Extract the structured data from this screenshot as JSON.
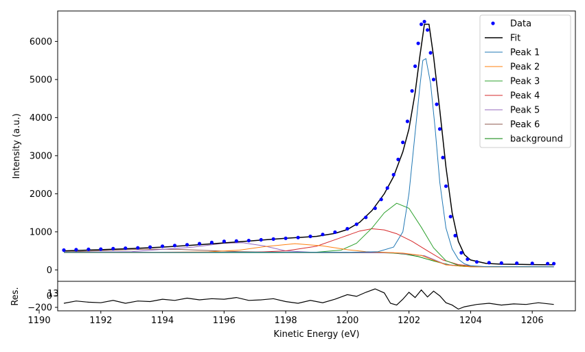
{
  "chart_data": {
    "type": "line",
    "xlabel": "Kinetic Energy (eV)",
    "ylabel": "Intensity (a.u.)",
    "res_label": "Res.",
    "res_overlap_text": "13",
    "xlim": [
      1190.6,
      1207.4
    ],
    "ylim": [
      -300,
      6800
    ],
    "res_ylim": [
      -260,
      250
    ],
    "x_ticks": [
      1190,
      1192,
      1194,
      1196,
      1198,
      1200,
      1202,
      1204,
      1206
    ],
    "y_ticks": [
      0,
      1000,
      2000,
      3000,
      4000,
      5000,
      6000
    ],
    "res_y_ticks": [
      0,
      -200
    ],
    "legend": {
      "position": "top-right",
      "entries": [
        {
          "label": "Data",
          "color": "#0000ff",
          "kind": "marker"
        },
        {
          "label": "Fit",
          "color": "#000000",
          "kind": "line"
        },
        {
          "label": "Peak 1",
          "color": "#1f77b4",
          "kind": "line"
        },
        {
          "label": "Peak 2",
          "color": "#ff7f0e",
          "kind": "line"
        },
        {
          "label": "Peak 3",
          "color": "#2ca02c",
          "kind": "line"
        },
        {
          "label": "Peak 4",
          "color": "#d62728",
          "kind": "line"
        },
        {
          "label": "Peak 5",
          "color": "#9467bd",
          "kind": "line"
        },
        {
          "label": "Peak 6",
          "color": "#8c564b",
          "kind": "line"
        },
        {
          "label": "background",
          "color": "#008000",
          "kind": "line"
        }
      ]
    },
    "data_series": {
      "name": "Data",
      "color": "#0000ff",
      "x": [
        1190.8,
        1191.2,
        1191.6,
        1192.0,
        1192.4,
        1192.8,
        1193.2,
        1193.6,
        1194.0,
        1194.4,
        1194.8,
        1195.2,
        1195.6,
        1196.0,
        1196.4,
        1196.8,
        1197.2,
        1197.6,
        1198.0,
        1198.4,
        1198.8,
        1199.2,
        1199.6,
        1200.0,
        1200.3,
        1200.6,
        1200.9,
        1201.1,
        1201.3,
        1201.5,
        1201.65,
        1201.8,
        1201.95,
        1202.1,
        1202.2,
        1202.3,
        1202.4,
        1202.5,
        1202.6,
        1202.7,
        1202.8,
        1202.9,
        1203.0,
        1203.1,
        1203.2,
        1203.35,
        1203.5,
        1203.7,
        1203.9,
        1204.2,
        1204.6,
        1205.0,
        1205.5,
        1206.0,
        1206.5,
        1206.7
      ],
      "y": [
        520,
        530,
        540,
        545,
        560,
        570,
        580,
        600,
        620,
        640,
        660,
        690,
        720,
        750,
        760,
        770,
        790,
        810,
        830,
        850,
        880,
        930,
        990,
        1080,
        1200,
        1380,
        1620,
        1850,
        2150,
        2500,
        2900,
        3350,
        3900,
        4700,
        5350,
        5950,
        6450,
        6520,
        6300,
        5700,
        5000,
        4350,
        3700,
        2950,
        2200,
        1400,
        900,
        450,
        280,
        210,
        190,
        180,
        175,
        170,
        165,
        165
      ]
    },
    "fit_series": {
      "name": "Fit",
      "color": "#000000",
      "x": [
        1190.8,
        1192.0,
        1193.0,
        1194.0,
        1195.0,
        1196.0,
        1197.0,
        1198.0,
        1199.0,
        1199.6,
        1200.0,
        1200.4,
        1200.8,
        1201.2,
        1201.5,
        1201.8,
        1202.0,
        1202.2,
        1202.35,
        1202.5,
        1202.65,
        1202.8,
        1203.0,
        1203.2,
        1203.4,
        1203.6,
        1203.8,
        1204.0,
        1204.5,
        1205.0,
        1206.0,
        1206.7
      ],
      "y": [
        500,
        530,
        560,
        600,
        650,
        710,
        770,
        830,
        880,
        960,
        1060,
        1250,
        1560,
        2000,
        2450,
        3100,
        3700,
        4650,
        5600,
        6450,
        6450,
        5600,
        4200,
        2700,
        1500,
        750,
        400,
        260,
        170,
        150,
        140,
        135
      ]
    },
    "series": [
      {
        "name": "Peak 1",
        "color": "#1f77b4",
        "x": [
          1190.8,
          1200.0,
          1201.0,
          1201.5,
          1201.8,
          1202.0,
          1202.2,
          1202.35,
          1202.45,
          1202.55,
          1202.7,
          1202.85,
          1203.0,
          1203.2,
          1203.4,
          1203.6,
          1203.8,
          1204.0,
          1204.5,
          1206.7
        ],
        "y": [
          460,
          460,
          480,
          600,
          1000,
          2000,
          3600,
          4800,
          5500,
          5550,
          4900,
          3700,
          2300,
          1100,
          550,
          280,
          160,
          110,
          85,
          80
        ]
      },
      {
        "name": "Peak 2",
        "color": "#ff7f0e",
        "x": [
          1190.8,
          1194.0,
          1195.5,
          1196.5,
          1197.3,
          1198.3,
          1199.2,
          1200.0,
          1200.6,
          1201.2,
          1201.8,
          1202.4,
          1203.2,
          1204.0,
          1206.7
        ],
        "y": [
          460,
          465,
          475,
          520,
          610,
          690,
          630,
          530,
          480,
          460,
          440,
          380,
          130,
          80,
          80
        ]
      },
      {
        "name": "Peak 3",
        "color": "#2ca02c",
        "x": [
          1190.8,
          1199.0,
          1199.8,
          1200.3,
          1200.8,
          1201.2,
          1201.6,
          1202.0,
          1202.4,
          1202.8,
          1203.2,
          1203.6,
          1204.0,
          1206.7
        ],
        "y": [
          460,
          465,
          520,
          700,
          1100,
          1500,
          1750,
          1620,
          1120,
          580,
          240,
          120,
          85,
          80
        ]
      },
      {
        "name": "Peak 4",
        "color": "#d62728",
        "x": [
          1190.8,
          1197.0,
          1198.0,
          1199.0,
          1199.8,
          1200.4,
          1200.8,
          1201.2,
          1201.6,
          1202.1,
          1202.6,
          1203.1,
          1203.6,
          1204.2,
          1206.7
        ],
        "y": [
          460,
          465,
          500,
          620,
          850,
          1020,
          1080,
          1050,
          950,
          750,
          500,
          260,
          140,
          90,
          80
        ]
      },
      {
        "name": "Peak 5",
        "color": "#9467bd",
        "x": [
          1190.8,
          1193.0,
          1195.0,
          1196.0,
          1196.6,
          1197.3,
          1198.0,
          1198.8,
          1200.0,
          1201.5,
          1202.5,
          1203.2,
          1204.0,
          1206.7
        ],
        "y": [
          460,
          480,
          600,
          700,
          715,
          630,
          500,
          465,
          460,
          450,
          370,
          140,
          85,
          80
        ]
      },
      {
        "name": "Peak 6",
        "color": "#8c564b",
        "x": [
          1190.8,
          1191.5,
          1192.5,
          1193.5,
          1194.5,
          1195.5,
          1196.5,
          1198.0,
          1201.5,
          1202.5,
          1203.2,
          1204.0,
          1206.7
        ],
        "y": [
          470,
          490,
          520,
          545,
          540,
          510,
          480,
          462,
          450,
          370,
          140,
          85,
          80
        ]
      },
      {
        "name": "background",
        "color": "#008000",
        "x": [
          1190.8,
          1198.0,
          1201.0,
          1201.5,
          1201.9,
          1202.3,
          1202.6,
          1203.0,
          1203.4,
          1203.8,
          1204.2,
          1206.7
        ],
        "y": [
          455,
          455,
          452,
          440,
          410,
          350,
          280,
          190,
          120,
          90,
          80,
          80
        ]
      }
    ],
    "residuals": {
      "color": "#000000",
      "x": [
        1190.8,
        1191.2,
        1191.6,
        1192.0,
        1192.4,
        1192.8,
        1193.2,
        1193.6,
        1194.0,
        1194.4,
        1194.8,
        1195.2,
        1195.6,
        1196.0,
        1196.4,
        1196.8,
        1197.2,
        1197.6,
        1198.0,
        1198.4,
        1198.8,
        1199.2,
        1199.6,
        1200.0,
        1200.3,
        1200.6,
        1200.9,
        1201.2,
        1201.4,
        1201.6,
        1201.8,
        1202.0,
        1202.2,
        1202.4,
        1202.6,
        1202.8,
        1203.0,
        1203.2,
        1203.4,
        1203.6,
        1203.8,
        1204.2,
        1204.6,
        1205.0,
        1205.4,
        1205.8,
        1206.2,
        1206.7
      ],
      "y": [
        -130,
        -90,
        -110,
        -120,
        -80,
        -130,
        -90,
        -100,
        -60,
        -80,
        -40,
        -70,
        -50,
        -60,
        -30,
        -80,
        -70,
        -50,
        -100,
        -130,
        -80,
        -120,
        -60,
        20,
        -10,
        60,
        120,
        50,
        -130,
        -160,
        -60,
        60,
        -30,
        100,
        -20,
        80,
        0,
        -120,
        -160,
        -230,
        -190,
        -150,
        -130,
        -160,
        -140,
        -150,
        -120,
        -150
      ]
    }
  }
}
